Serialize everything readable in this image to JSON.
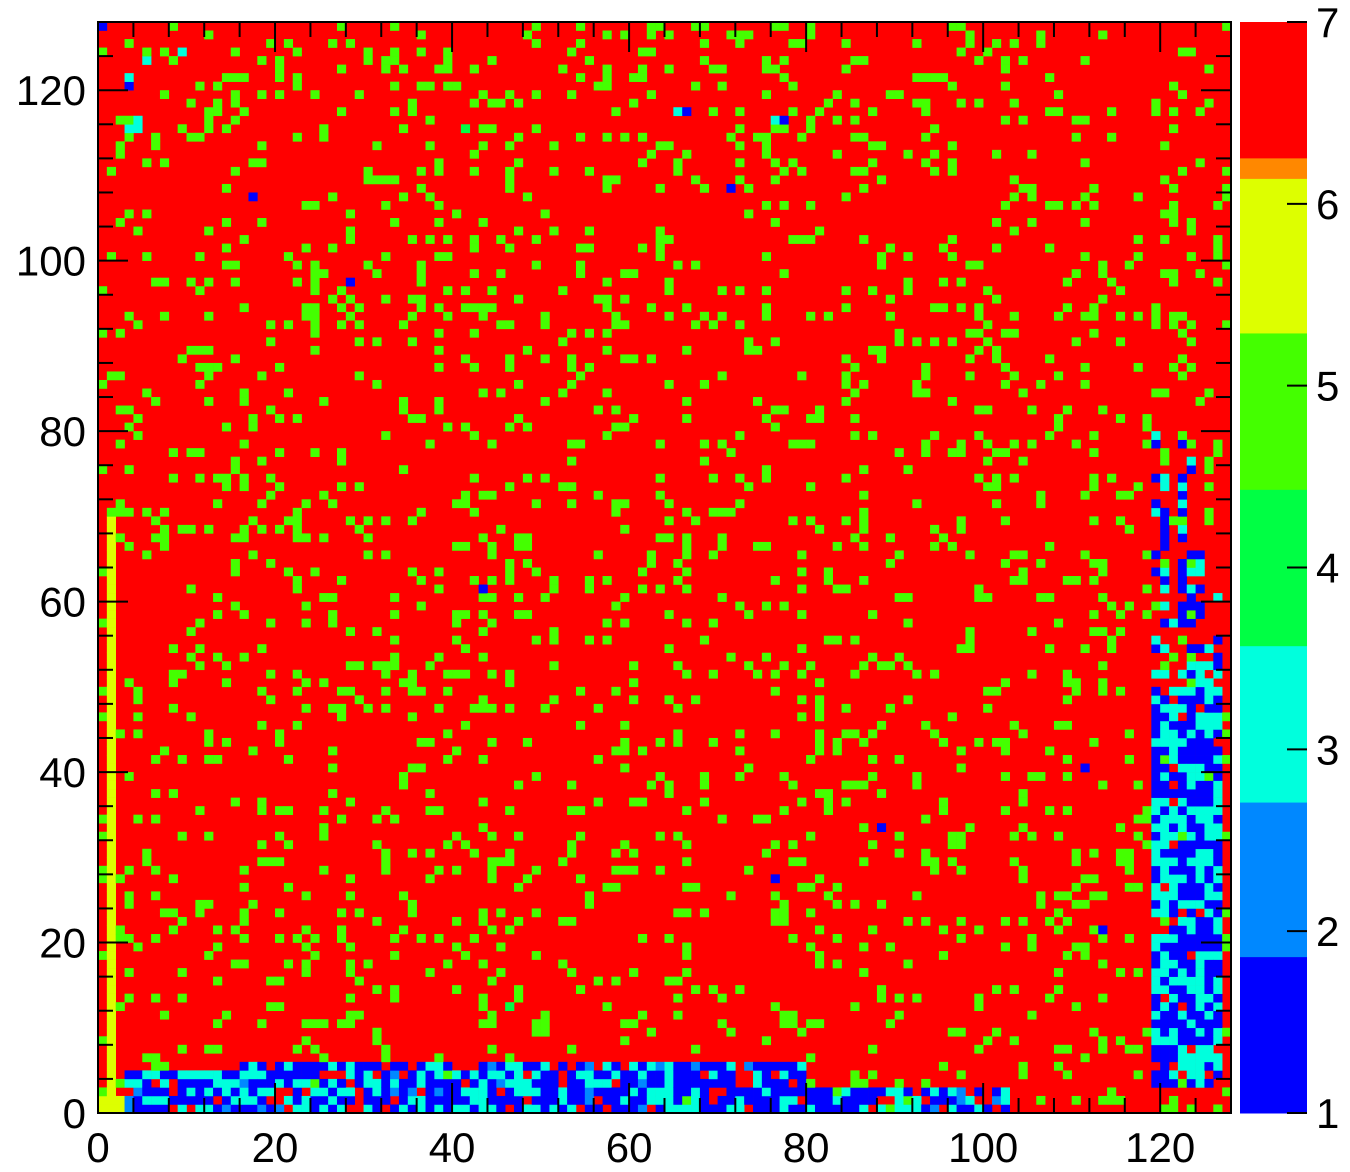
{
  "chart_data": {
    "type": "heatmap",
    "title": "",
    "xlabel": "",
    "ylabel": "",
    "x_range": [
      0,
      128
    ],
    "y_range": [
      0,
      128
    ],
    "bins": [
      128,
      128
    ],
    "x_ticks": [
      "0",
      "20",
      "40",
      "60",
      "80",
      "100",
      "120"
    ],
    "y_ticks": [
      "0",
      "20",
      "40",
      "60",
      "80",
      "100",
      "120"
    ],
    "colorbar": {
      "range": [
        1,
        7
      ],
      "ticks": [
        "1",
        "2",
        "3",
        "4",
        "5",
        "6",
        "7"
      ],
      "levels": [
        {
          "from": 1,
          "to": 1.86,
          "color": "#0000ff"
        },
        {
          "from": 1.86,
          "to": 2.71,
          "color": "#0088ff"
        },
        {
          "from": 2.71,
          "to": 3.57,
          "color": "#00ffdd"
        },
        {
          "from": 3.57,
          "to": 4.43,
          "color": "#00ff44"
        },
        {
          "from": 4.43,
          "to": 5.29,
          "color": "#44ff00"
        },
        {
          "from": 5.29,
          "to": 6.14,
          "color": "#ddff00"
        },
        {
          "from": 6.14,
          "to": 7,
          "color": "#ff8800"
        },
        {
          "from": 7,
          "to": 7.01,
          "color": "#ff0000"
        }
      ]
    },
    "background_value": 7,
    "cell_values_summary": "Most cells have value 7 (red); about 12% of cells are scattered at value 5 (yellow). Low values (1–3) cluster along the bottom rows y=0–6 for x≈3–102 and along columns x≈119–126 for y≈3–82, with isolated low cells elsewhere.",
    "isolated_cells": [
      {
        "x": 0,
        "y": 127,
        "value": 1
      },
      {
        "x": 3,
        "y": 121,
        "value": 3
      },
      {
        "x": 3,
        "y": 120,
        "value": 1
      },
      {
        "x": 5,
        "y": 123,
        "value": 3
      },
      {
        "x": 9,
        "y": 124,
        "value": 3
      },
      {
        "x": 4,
        "y": 116,
        "value": 3
      },
      {
        "x": 4,
        "y": 115,
        "value": 3
      },
      {
        "x": 3,
        "y": 115,
        "value": 3
      },
      {
        "x": 17,
        "y": 107,
        "value": 1
      },
      {
        "x": 28,
        "y": 97,
        "value": 1
      },
      {
        "x": 41,
        "y": 115,
        "value": 4
      },
      {
        "x": 66,
        "y": 117,
        "value": 1
      },
      {
        "x": 65,
        "y": 117,
        "value": 3
      },
      {
        "x": 71,
        "y": 108,
        "value": 1
      },
      {
        "x": 77,
        "y": 116,
        "value": 1
      },
      {
        "x": 76,
        "y": 116,
        "value": 3
      },
      {
        "x": 43,
        "y": 61,
        "value": 1
      },
      {
        "x": 88,
        "y": 33,
        "value": 1
      },
      {
        "x": 76,
        "y": 27,
        "value": 1
      },
      {
        "x": 111,
        "y": 40,
        "value": 1
      },
      {
        "x": 113,
        "y": 21,
        "value": 1
      },
      {
        "x": 46,
        "y": 12,
        "value": 4
      }
    ],
    "low_regions": [
      {
        "x": [
          3,
          102
        ],
        "y": [
          0,
          6
        ]
      },
      {
        "x": [
          119,
          126
        ],
        "y": [
          3,
          82
        ]
      }
    ]
  }
}
